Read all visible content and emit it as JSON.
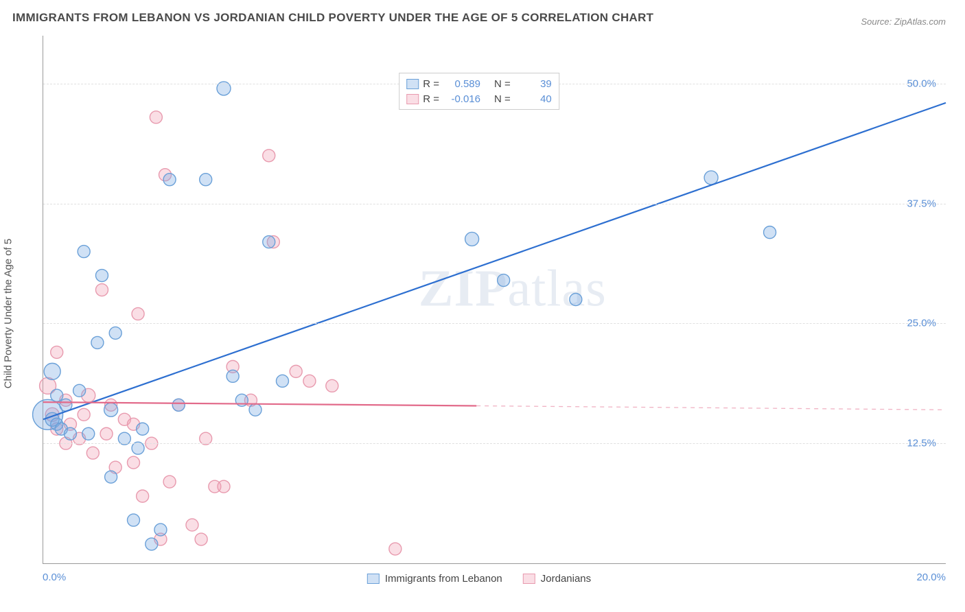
{
  "title": "IMMIGRANTS FROM LEBANON VS JORDANIAN CHILD POVERTY UNDER THE AGE OF 5 CORRELATION CHART",
  "source": "Source: ZipAtlas.com",
  "watermark_prefix": "ZIP",
  "watermark_suffix": "atlas",
  "chart": {
    "type": "scatter",
    "ylabel": "Child Poverty Under the Age of 5",
    "xlim": [
      0,
      20
    ],
    "ylim": [
      0,
      55
    ],
    "xtick_labels": [
      "0.0%",
      "20.0%"
    ],
    "ytick_positions": [
      12.5,
      25.0,
      37.5,
      50.0
    ],
    "ytick_labels": [
      "12.5%",
      "25.0%",
      "37.5%",
      "50.0%"
    ],
    "grid_color": "#e0e0e0",
    "background_color": "#ffffff",
    "axis_label_color": "#5a8fd6",
    "axis_label_fontsize": 15,
    "title_fontsize": 17,
    "series": [
      {
        "name": "Immigrants from Lebanon",
        "fill": "rgba(120,170,225,0.35)",
        "stroke": "#6aa0d8",
        "line_color": "#2d6fd0",
        "line_width": 2.2,
        "marker_radius": 9,
        "R": "0.589",
        "N": "39",
        "regression": {
          "x1": 0,
          "y1": 15.0,
          "x2": 20,
          "y2": 48.0,
          "max_x_data": 20
        },
        "points": [
          [
            0.1,
            15.5,
            22
          ],
          [
            0.2,
            20.0,
            12
          ],
          [
            0.2,
            15.0,
            10
          ],
          [
            0.3,
            17.5,
            9
          ],
          [
            0.3,
            14.5,
            9
          ],
          [
            0.4,
            14.0,
            9
          ],
          [
            0.5,
            16.5,
            9
          ],
          [
            0.6,
            13.5,
            9
          ],
          [
            0.8,
            18.0,
            9
          ],
          [
            0.9,
            32.5,
            9
          ],
          [
            1.0,
            13.5,
            9
          ],
          [
            1.2,
            23.0,
            9
          ],
          [
            1.3,
            30.0,
            9
          ],
          [
            1.5,
            16.0,
            10
          ],
          [
            1.5,
            9.0,
            9
          ],
          [
            1.6,
            24.0,
            9
          ],
          [
            1.8,
            13.0,
            9
          ],
          [
            2.0,
            4.5,
            9
          ],
          [
            2.1,
            12.0,
            9
          ],
          [
            2.2,
            14.0,
            9
          ],
          [
            2.4,
            2.0,
            9
          ],
          [
            2.6,
            3.5,
            9
          ],
          [
            2.8,
            40.0,
            9
          ],
          [
            3.0,
            16.5,
            9
          ],
          [
            3.6,
            40.0,
            9
          ],
          [
            4.0,
            49.5,
            10
          ],
          [
            4.2,
            19.5,
            9
          ],
          [
            4.4,
            17.0,
            9
          ],
          [
            4.7,
            16.0,
            9
          ],
          [
            5.0,
            33.5,
            9
          ],
          [
            5.3,
            19.0,
            9
          ],
          [
            9.5,
            33.8,
            10
          ],
          [
            10.2,
            29.5,
            9
          ],
          [
            11.8,
            27.5,
            9
          ],
          [
            14.8,
            40.2,
            10
          ],
          [
            16.1,
            34.5,
            9
          ]
        ]
      },
      {
        "name": "Jordanians",
        "fill": "rgba(240,160,180,0.35)",
        "stroke": "#e89aae",
        "line_color": "#e26a8a",
        "line_width": 2.2,
        "marker_radius": 9,
        "R": "-0.016",
        "N": "40",
        "regression": {
          "x1": 0,
          "y1": 16.8,
          "x2": 20,
          "y2": 16.0,
          "max_x_data": 9.6
        },
        "points": [
          [
            0.1,
            18.5,
            12
          ],
          [
            0.2,
            15.5,
            10
          ],
          [
            0.3,
            14.0,
            9
          ],
          [
            0.3,
            22.0,
            9
          ],
          [
            0.5,
            17.0,
            9
          ],
          [
            0.5,
            12.5,
            9
          ],
          [
            0.6,
            14.5,
            9
          ],
          [
            0.8,
            13.0,
            9
          ],
          [
            0.9,
            15.5,
            9
          ],
          [
            1.0,
            17.5,
            10
          ],
          [
            1.1,
            11.5,
            9
          ],
          [
            1.3,
            28.5,
            9
          ],
          [
            1.4,
            13.5,
            9
          ],
          [
            1.5,
            16.5,
            9
          ],
          [
            1.6,
            10.0,
            9
          ],
          [
            1.8,
            15.0,
            9
          ],
          [
            2.0,
            10.5,
            9
          ],
          [
            2.0,
            14.5,
            9
          ],
          [
            2.1,
            26.0,
            9
          ],
          [
            2.2,
            7.0,
            9
          ],
          [
            2.4,
            12.5,
            9
          ],
          [
            2.5,
            46.5,
            9
          ],
          [
            2.6,
            2.5,
            9
          ],
          [
            2.7,
            40.5,
            9
          ],
          [
            2.8,
            8.5,
            9
          ],
          [
            3.0,
            16.5,
            9
          ],
          [
            3.3,
            4.0,
            9
          ],
          [
            3.5,
            2.5,
            9
          ],
          [
            3.6,
            13.0,
            9
          ],
          [
            3.8,
            8.0,
            9
          ],
          [
            4.0,
            8.0,
            9
          ],
          [
            4.2,
            20.5,
            9
          ],
          [
            4.6,
            17.0,
            9
          ],
          [
            5.0,
            42.5,
            9
          ],
          [
            5.1,
            33.5,
            9
          ],
          [
            5.6,
            20.0,
            9
          ],
          [
            5.9,
            19.0,
            9
          ],
          [
            6.4,
            18.5,
            9
          ],
          [
            7.8,
            1.5,
            9
          ]
        ]
      }
    ],
    "legend_top": {
      "r_label": "R =",
      "n_label": "N ="
    }
  }
}
